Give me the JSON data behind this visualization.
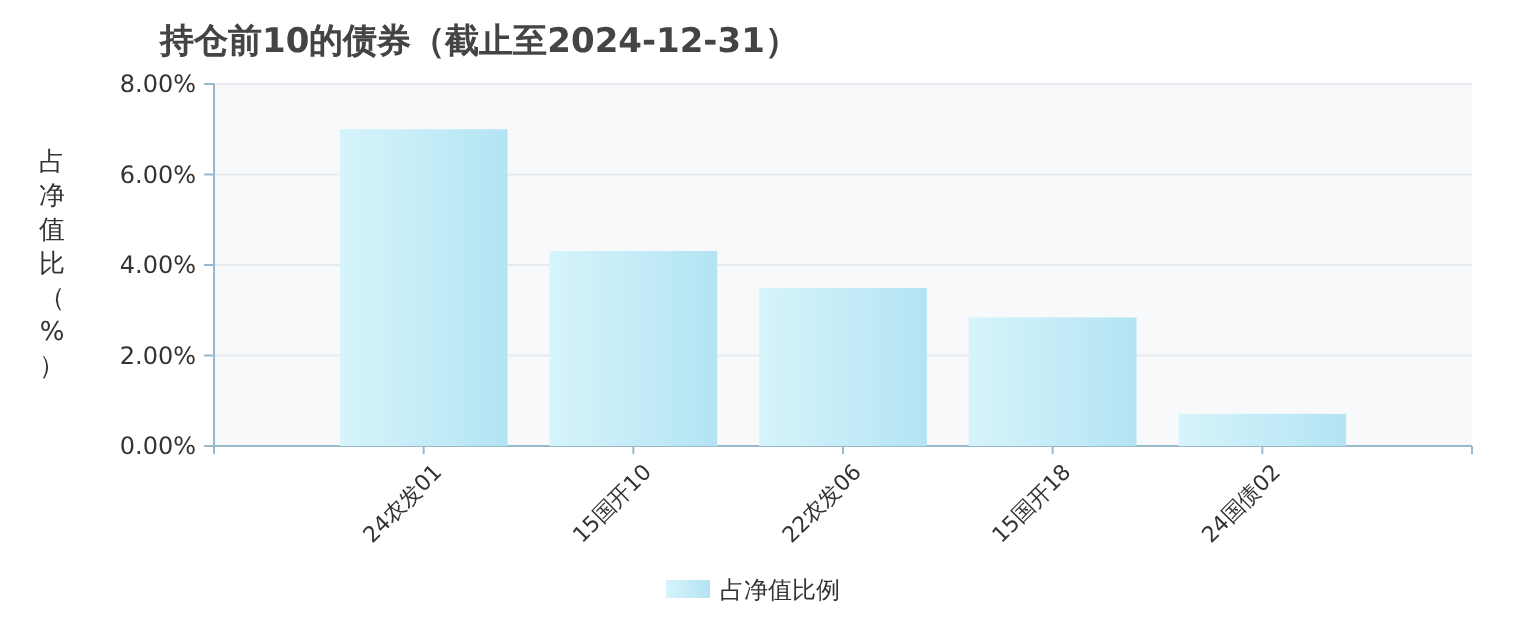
{
  "chart_data": {
    "type": "bar",
    "title": "持仓前10的债券（截止至2024-12-31）",
    "ylabel": "占净值比（%）",
    "categories": [
      "24农发01",
      "15国开10",
      "22农发06",
      "15国开18",
      "24国债02"
    ],
    "series": [
      {
        "name": "占净值比例",
        "color": "#b3e4f3",
        "values": [
          7.0,
          4.31,
          3.49,
          2.84,
          0.71
        ]
      }
    ],
    "ylim": [
      0,
      8
    ],
    "yticks": [
      {
        "value": 0,
        "label": "0.00%"
      },
      {
        "value": 2,
        "label": "2.00%"
      },
      {
        "value": 4,
        "label": "4.00%"
      },
      {
        "value": 6,
        "label": "6.00%"
      },
      {
        "value": 8,
        "label": "8.00%"
      }
    ],
    "grid": "y",
    "legend": "bottom"
  }
}
